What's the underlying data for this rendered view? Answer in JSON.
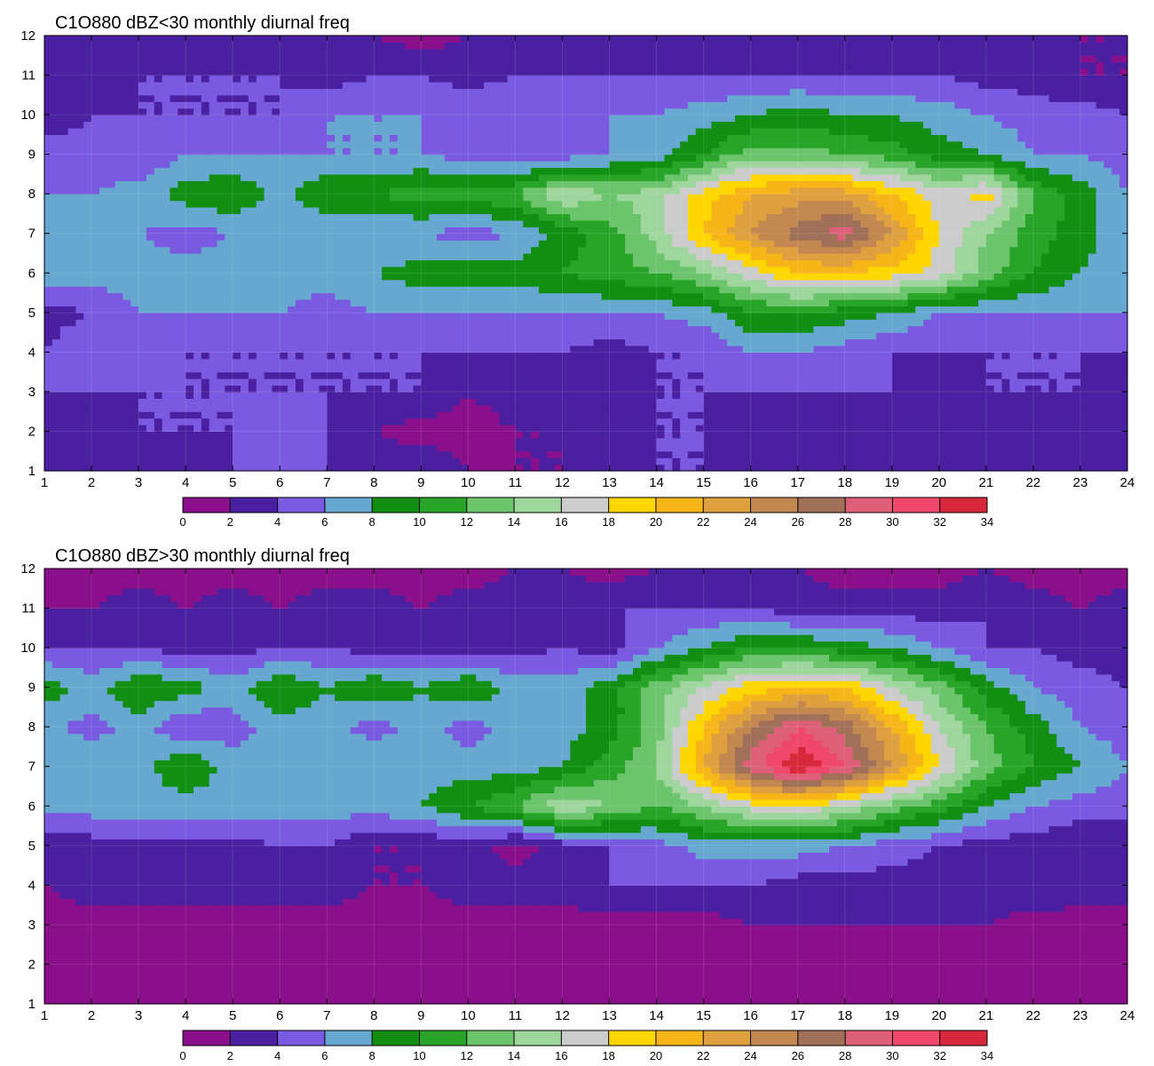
{
  "chart_data": [
    {
      "type": "heatmap",
      "subtype": "filled-contour",
      "title": "C1O880 dBZ<30 monthly diurnal freq",
      "xlabel": "",
      "ylabel": "",
      "xlim": [
        1,
        24
      ],
      "ylim": [
        1,
        12
      ],
      "x": [
        1,
        2,
        3,
        4,
        5,
        6,
        7,
        8,
        9,
        10,
        11,
        12,
        13,
        14,
        15,
        16,
        17,
        18,
        19,
        20,
        21,
        22,
        23,
        24
      ],
      "y": [
        1,
        2,
        3,
        4,
        5,
        6,
        7,
        8,
        9,
        10,
        11,
        12
      ],
      "z_levels": [
        0,
        2,
        4,
        6,
        8,
        10,
        12,
        14,
        16,
        18,
        20,
        22,
        24,
        26,
        28,
        30,
        32,
        34
      ],
      "z": [
        [
          4,
          4,
          4,
          2,
          4,
          6,
          4,
          3,
          4,
          2,
          2,
          2,
          4,
          4,
          4,
          2,
          3,
          4,
          4,
          4,
          2,
          4,
          2,
          4
        ],
        [
          4,
          2,
          4,
          4,
          4,
          5,
          4,
          2,
          1,
          1,
          2,
          2,
          2,
          4,
          4,
          2,
          2,
          4,
          2,
          2,
          2,
          4,
          2,
          2
        ],
        [
          4,
          4,
          4,
          4,
          4,
          4,
          4,
          4,
          4,
          2,
          3,
          4,
          4,
          4,
          4,
          4,
          4,
          4,
          4,
          2,
          4,
          4,
          4,
          2
        ],
        [
          4,
          6,
          6,
          4,
          4,
          4,
          4,
          4,
          4,
          4,
          4,
          4,
          3,
          4,
          4,
          6,
          6,
          5,
          4,
          4,
          4,
          4,
          4,
          4
        ],
        [
          3,
          4,
          6,
          6,
          6,
          6,
          5,
          6,
          6,
          6,
          6,
          6,
          6,
          6,
          7,
          10,
          10,
          9,
          8,
          6,
          6,
          6,
          6,
          6
        ],
        [
          7,
          7,
          7,
          7,
          7,
          7,
          7,
          8,
          9,
          9,
          9,
          10,
          11,
          12,
          14,
          17,
          20,
          20,
          19,
          17,
          13,
          10,
          8,
          7
        ],
        [
          7,
          6,
          6,
          5,
          6,
          6,
          6,
          6,
          6,
          5,
          6,
          9,
          11,
          15,
          20,
          24,
          27,
          29,
          24,
          18,
          14,
          11,
          9,
          6
        ],
        [
          6,
          6,
          7,
          9,
          10,
          7,
          10,
          10,
          11,
          11,
          12,
          16,
          14,
          15,
          19,
          22,
          23,
          23,
          20,
          17,
          19,
          12,
          9,
          6
        ],
        [
          6,
          5,
          4,
          6,
          6,
          6,
          6,
          6,
          6,
          5,
          4,
          5,
          6,
          7,
          10,
          13,
          13,
          12,
          11,
          9,
          8,
          6,
          6,
          5
        ],
        [
          2,
          4,
          4,
          4,
          4,
          4,
          6,
          6,
          6,
          6,
          6,
          6,
          6,
          6,
          7,
          8,
          9,
          8,
          8,
          7,
          6,
          5,
          5,
          4
        ],
        [
          4,
          3,
          4,
          4,
          4,
          4,
          3,
          4,
          4,
          3,
          4,
          4,
          4,
          4,
          4,
          4,
          4,
          4,
          4,
          4,
          3,
          3,
          2,
          2
        ],
        [
          2,
          2,
          2,
          2,
          3,
          2,
          2,
          2,
          1,
          2,
          2,
          2,
          2,
          2,
          2,
          2,
          2,
          2,
          2,
          2,
          2,
          2,
          2,
          2
        ]
      ],
      "colorbar": {
        "ticks": [
          "0",
          "2",
          "4",
          "6",
          "8",
          "10",
          "12",
          "14",
          "16",
          "18",
          "20",
          "22",
          "24",
          "26",
          "28",
          "30",
          "32",
          "34"
        ],
        "colors": [
          "#8a0f8a",
          "#4a1fa0",
          "#7a5ae0",
          "#66a8d0",
          "#128f12",
          "#28a528",
          "#6cc46c",
          "#9ed69e",
          "#cccccc",
          "#ffd700",
          "#f6b519",
          "#dfa040",
          "#c28850",
          "#a07058",
          "#de5f78",
          "#f0476c",
          "#d8283c"
        ]
      }
    },
    {
      "type": "heatmap",
      "subtype": "filled-contour",
      "title": "C1O880 dBZ>30 monthly diurnal freq",
      "xlabel": "",
      "ylabel": "",
      "xlim": [
        1,
        24
      ],
      "ylim": [
        1,
        12
      ],
      "x": [
        1,
        2,
        3,
        4,
        5,
        6,
        7,
        8,
        9,
        10,
        11,
        12,
        13,
        14,
        15,
        16,
        17,
        18,
        19,
        20,
        21,
        22,
        23,
        24
      ],
      "y": [
        1,
        2,
        3,
        4,
        5,
        6,
        7,
        8,
        9,
        10,
        11,
        12
      ],
      "z_levels": [
        0,
        2,
        4,
        6,
        8,
        10,
        12,
        14,
        16,
        18,
        20,
        22,
        24,
        26,
        28,
        30,
        32,
        34
      ],
      "z": [
        [
          1,
          1,
          1,
          1,
          1,
          1,
          1,
          1,
          1,
          1,
          1,
          1,
          1,
          1,
          1,
          1,
          1,
          1,
          1,
          1,
          1,
          1,
          1,
          1
        ],
        [
          1,
          1,
          1,
          1,
          1,
          1,
          1,
          1,
          1,
          1,
          1,
          1,
          1,
          1,
          1,
          1,
          1,
          1,
          1,
          1,
          1,
          1,
          1,
          1
        ],
        [
          1,
          1,
          1,
          1,
          1,
          1,
          1,
          1,
          1,
          1,
          1,
          1,
          1,
          1,
          1,
          2,
          2,
          2,
          2,
          2,
          2,
          1,
          1,
          1
        ],
        [
          2,
          3,
          3,
          3,
          3,
          3,
          3,
          2,
          2,
          3,
          3,
          3,
          4,
          4,
          4,
          4,
          3,
          3,
          3,
          3,
          3,
          4,
          3,
          3
        ],
        [
          2,
          3,
          3,
          3,
          3,
          4,
          4,
          2,
          2,
          3,
          1,
          3,
          4,
          5,
          7,
          7,
          7,
          6,
          5,
          4,
          3,
          3,
          2,
          2
        ],
        [
          7,
          7,
          7,
          7,
          7,
          7,
          7,
          7,
          8,
          10,
          12,
          16,
          14,
          12,
          14,
          17,
          18,
          16,
          13,
          11,
          8,
          6,
          5,
          5
        ],
        [
          6,
          8,
          7,
          10,
          7,
          7,
          7,
          8,
          7,
          7,
          7,
          8,
          11,
          14,
          22,
          29,
          34,
          30,
          24,
          18,
          13,
          10,
          8,
          6
        ],
        [
          7,
          5,
          7,
          4,
          5,
          7,
          7,
          5,
          7,
          5,
          7,
          7,
          9,
          13,
          20,
          26,
          30,
          27,
          22,
          16,
          12,
          9,
          6,
          5
        ],
        [
          9,
          7,
          10,
          9,
          7,
          10,
          8,
          10,
          8,
          10,
          7,
          7,
          9,
          13,
          16,
          19,
          20,
          20,
          16,
          13,
          9,
          6,
          5,
          4
        ],
        [
          4,
          4,
          4,
          3,
          3,
          4,
          4,
          3,
          3,
          3,
          3,
          4,
          3,
          6,
          8,
          10,
          10,
          9,
          8,
          6,
          4,
          4,
          3,
          3
        ],
        [
          2,
          2,
          3,
          2,
          3,
          2,
          3,
          3,
          2,
          3,
          3,
          3,
          4,
          4,
          4,
          4,
          3,
          3,
          3,
          3,
          4,
          3,
          2,
          3
        ],
        [
          1,
          1,
          1,
          1,
          1,
          1,
          1,
          1,
          1,
          1,
          2,
          2,
          1,
          2,
          2,
          2,
          2,
          1,
          1,
          1,
          2,
          1,
          1,
          1
        ]
      ],
      "colorbar": {
        "ticks": [
          "0",
          "2",
          "4",
          "6",
          "8",
          "10",
          "12",
          "14",
          "16",
          "18",
          "20",
          "22",
          "24",
          "26",
          "28",
          "30",
          "32",
          "34"
        ],
        "colors": [
          "#8a0f8a",
          "#4a1fa0",
          "#7a5ae0",
          "#66a8d0",
          "#128f12",
          "#28a528",
          "#6cc46c",
          "#9ed69e",
          "#cccccc",
          "#ffd700",
          "#f6b519",
          "#dfa040",
          "#c28850",
          "#a07058",
          "#de5f78",
          "#f0476c",
          "#d8283c"
        ]
      }
    }
  ]
}
